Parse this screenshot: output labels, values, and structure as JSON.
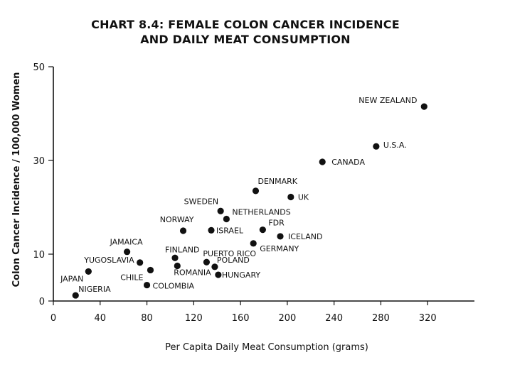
{
  "chart_data": {
    "type": "scatter",
    "title_lines": [
      "CHART 8.4: FEMALE COLON CANCER INCIDENCE",
      "AND DAILY MEAT CONSUMPTION"
    ],
    "xlabel": "Per Capita Daily Meat Consumption (grams)",
    "ylabel": "Colon Cancer Incidence / 100,000 Women",
    "xlim": [
      0,
      360
    ],
    "ylim": [
      0,
      50
    ],
    "x_ticks": [
      0,
      40,
      80,
      120,
      160,
      200,
      240,
      280,
      320
    ],
    "y_ticks": [
      0,
      10,
      30,
      50
    ],
    "grid": false,
    "marker_color": "#111111",
    "points": [
      {
        "label": "NEW ZEALAND",
        "x": 317,
        "y": 41.5
      },
      {
        "label": "U.S.A.",
        "x": 276,
        "y": 33
      },
      {
        "label": "CANADA",
        "x": 230,
        "y": 29.7
      },
      {
        "label": "DENMARK",
        "x": 173,
        "y": 23.5
      },
      {
        "label": "UK",
        "x": 203,
        "y": 22.2
      },
      {
        "label": "SWEDEN",
        "x": 143,
        "y": 19.2
      },
      {
        "label": "NETHERLANDS",
        "x": 148,
        "y": 17.5
      },
      {
        "label": "NORWAY",
        "x": 111,
        "y": 15
      },
      {
        "label": "ISRAEL",
        "x": 135,
        "y": 15.1
      },
      {
        "label": "FDR",
        "x": 179,
        "y": 15.2
      },
      {
        "label": "ICELAND",
        "x": 194,
        "y": 13.8
      },
      {
        "label": "GERMANY",
        "x": 171,
        "y": 12.3
      },
      {
        "label": "JAMAICA",
        "x": 63,
        "y": 10.5
      },
      {
        "label": "FINLAND",
        "x": 104,
        "y": 9.2
      },
      {
        "label": "PUERTO RICO",
        "x": 131,
        "y": 8.3
      },
      {
        "label": "POLAND",
        "x": 138,
        "y": 7.3
      },
      {
        "label": "YUGOSLAVIA",
        "x": 74,
        "y": 8.2
      },
      {
        "label": "ROMANIA",
        "x": 106,
        "y": 7.5
      },
      {
        "label": "CHILE",
        "x": 83,
        "y": 6.6
      },
      {
        "label": "HUNGARY",
        "x": 141,
        "y": 5.6
      },
      {
        "label": "JAPAN",
        "x": 30,
        "y": 6.3
      },
      {
        "label": "COLOMBIA",
        "x": 80,
        "y": 3.4
      },
      {
        "label": "NIGERIA",
        "x": 19,
        "y": 1.2
      }
    ]
  }
}
